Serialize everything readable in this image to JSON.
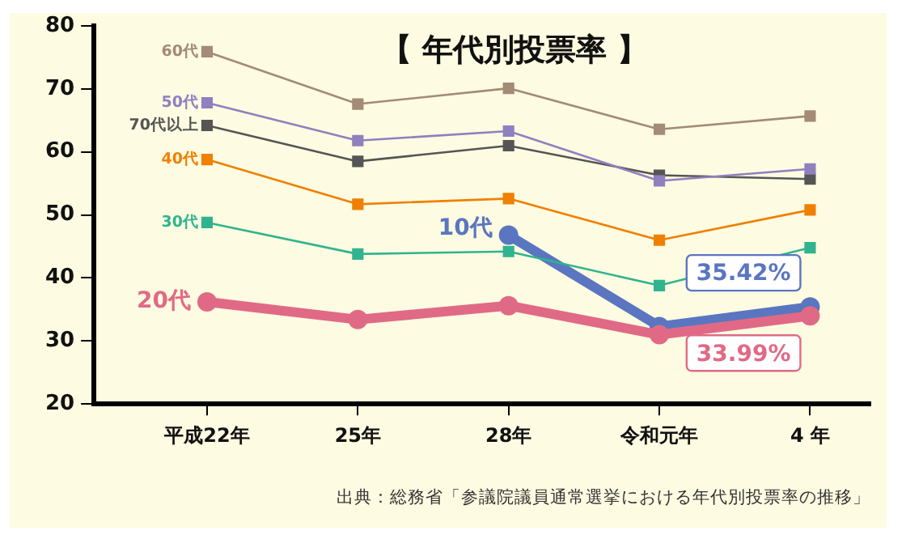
{
  "chart_data": {
    "type": "line",
    "title": "【 年代別投票率 】",
    "categories": [
      "平成22年",
      "25年",
      "28年",
      "令和元年",
      "4 年"
    ],
    "ylim": [
      20,
      80
    ],
    "yticks": [
      20,
      30,
      40,
      50,
      60,
      70,
      80
    ],
    "grid": false,
    "legend": false,
    "series": [
      {
        "name": "60代",
        "color": "#a38b76",
        "marker": "square",
        "values": [
          75.9,
          67.6,
          70.1,
          63.6,
          65.7
        ]
      },
      {
        "name": "50代",
        "color": "#8f80bf",
        "marker": "square",
        "values": [
          67.8,
          61.8,
          63.3,
          55.4,
          57.3
        ]
      },
      {
        "name": "70代以上",
        "color": "#555555",
        "marker": "square",
        "values": [
          64.2,
          58.5,
          61.0,
          56.3,
          55.7
        ]
      },
      {
        "name": "40代",
        "color": "#f08000",
        "marker": "square",
        "values": [
          58.8,
          51.7,
          52.6,
          46.0,
          50.8
        ]
      },
      {
        "name": "30代",
        "color": "#30b48f",
        "marker": "square",
        "values": [
          48.8,
          43.8,
          44.2,
          38.8,
          44.8
        ]
      },
      {
        "name": "20代",
        "color": "#e06a85",
        "marker": "circle",
        "values": [
          36.2,
          33.4,
          35.6,
          31.0,
          33.99
        ],
        "value_labels": [
          null,
          null,
          null,
          null,
          "33.99%"
        ]
      },
      {
        "name": "10代",
        "color": "#5a76c0",
        "marker": "circle",
        "values": [
          null,
          null,
          46.8,
          32.3,
          35.42
        ],
        "value_labels": [
          null,
          null,
          null,
          null,
          "35.42%"
        ]
      }
    ],
    "annotations": [
      "出典：総務省「参議院議員通常選挙における年代別投票率の推移」"
    ]
  }
}
